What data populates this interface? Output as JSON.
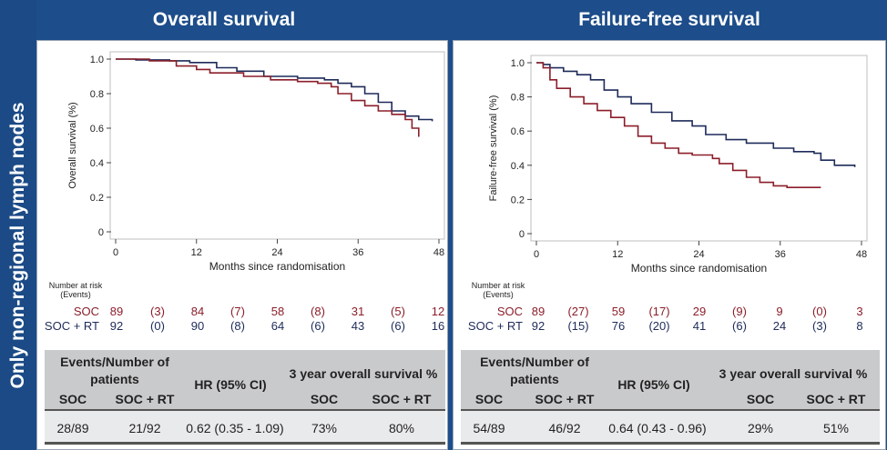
{
  "sidebar": {
    "text": "Only non-regional lymph nodes"
  },
  "panels": [
    {
      "title": "Overall survival",
      "risk_header": [
        "Number at risk",
        "(Events)"
      ],
      "risk": {
        "soc_label": "SOC",
        "rt_label": "SOC + RT",
        "soc": [
          "89",
          "(3)",
          "84",
          "(7)",
          "58",
          "(8)",
          "31",
          "(5)",
          "12"
        ],
        "rt": [
          "92",
          "(0)",
          "90",
          "(8)",
          "64",
          "(6)",
          "43",
          "(6)",
          "16"
        ]
      },
      "table": {
        "events_header": "Events/Number of patients",
        "hr_header": "HR (95% CI)",
        "surv_header": "3 year overall survival %",
        "col_soc": "SOC",
        "col_rt": "SOC + RT",
        "values": [
          "28/89",
          "21/92",
          "0.62 (0.35 - 1.09)",
          "73%",
          "80%"
        ]
      }
    },
    {
      "title": "Failure-free survival",
      "risk_header": [
        "Number at risk",
        "(Events)"
      ],
      "risk": {
        "soc_label": "SOC",
        "rt_label": "SOC + RT",
        "soc": [
          "89",
          "(27)",
          "59",
          "(17)",
          "29",
          "(9)",
          "9",
          "(0)",
          "3"
        ],
        "rt": [
          "92",
          "(15)",
          "76",
          "(20)",
          "41",
          "(6)",
          "24",
          "(3)",
          "8"
        ]
      },
      "table": {
        "events_header": "Events/Number of patients",
        "hr_header": "HR (95% CI)",
        "surv_header": "3 year overall survival %",
        "col_soc": "SOC",
        "col_rt": "SOC + RT",
        "values": [
          "54/89",
          "46/92",
          "0.64 (0.43 - 0.96)",
          "29%",
          "51%"
        ]
      }
    }
  ],
  "chart_data": [
    {
      "type": "line",
      "title": "Overall survival",
      "xlabel": "Months since randomisation",
      "ylabel": "Overall survival (%)",
      "xlim": [
        0,
        48
      ],
      "ylim": [
        0,
        1.0
      ],
      "xticks": [
        0,
        12,
        24,
        36,
        48
      ],
      "yticks": [
        0,
        0.2,
        0.4,
        0.6,
        0.8,
        1.0
      ],
      "grid": false,
      "legend": "none",
      "series": [
        {
          "name": "SOC + RT",
          "color": "#1e2b5a",
          "points": [
            [
              0,
              1.0
            ],
            [
              3,
              0.995
            ],
            [
              8,
              0.99
            ],
            [
              11,
              0.98
            ],
            [
              15,
              0.95
            ],
            [
              18,
              0.93
            ],
            [
              22,
              0.9
            ],
            [
              27,
              0.89
            ],
            [
              31,
              0.88
            ],
            [
              33,
              0.86
            ],
            [
              35,
              0.84
            ],
            [
              37,
              0.8
            ],
            [
              39,
              0.75
            ],
            [
              41,
              0.7
            ],
            [
              43,
              0.67
            ],
            [
              45,
              0.65
            ],
            [
              47,
              0.64
            ]
          ]
        },
        {
          "name": "SOC",
          "color": "#8b1e2a",
          "points": [
            [
              0,
              1.0
            ],
            [
              5,
              0.99
            ],
            [
              9,
              0.96
            ],
            [
              12,
              0.94
            ],
            [
              14,
              0.92
            ],
            [
              19,
              0.9
            ],
            [
              23,
              0.88
            ],
            [
              27,
              0.87
            ],
            [
              30,
              0.86
            ],
            [
              32,
              0.84
            ],
            [
              33,
              0.8
            ],
            [
              35,
              0.76
            ],
            [
              37,
              0.73
            ],
            [
              39,
              0.7
            ],
            [
              41,
              0.68
            ],
            [
              43,
              0.65
            ],
            [
              44,
              0.6
            ],
            [
              45,
              0.55
            ]
          ]
        }
      ]
    },
    {
      "type": "line",
      "title": "Failure-free survival",
      "xlabel": "Months since randomisation",
      "ylabel": "Failure-free survival (%)",
      "xlim": [
        0,
        48
      ],
      "ylim": [
        0,
        1.0
      ],
      "xticks": [
        0,
        12,
        24,
        36,
        48
      ],
      "yticks": [
        0,
        0.2,
        0.4,
        0.6,
        0.8,
        1.0
      ],
      "grid": false,
      "legend": "none",
      "series": [
        {
          "name": "SOC + RT",
          "color": "#1e2b5a",
          "points": [
            [
              0,
              1.0
            ],
            [
              1,
              0.99
            ],
            [
              2,
              0.97
            ],
            [
              4,
              0.95
            ],
            [
              6,
              0.93
            ],
            [
              8,
              0.9
            ],
            [
              10,
              0.84
            ],
            [
              12,
              0.8
            ],
            [
              14,
              0.76
            ],
            [
              17,
              0.71
            ],
            [
              20,
              0.66
            ],
            [
              23,
              0.63
            ],
            [
              25,
              0.58
            ],
            [
              28,
              0.55
            ],
            [
              31,
              0.53
            ],
            [
              35,
              0.5
            ],
            [
              38,
              0.48
            ],
            [
              41,
              0.47
            ],
            [
              42,
              0.43
            ],
            [
              44,
              0.4
            ],
            [
              47,
              0.39
            ]
          ]
        },
        {
          "name": "SOC",
          "color": "#8b1e2a",
          "points": [
            [
              0,
              1.0
            ],
            [
              1,
              0.97
            ],
            [
              2,
              0.9
            ],
            [
              3,
              0.85
            ],
            [
              5,
              0.8
            ],
            [
              7,
              0.76
            ],
            [
              9,
              0.72
            ],
            [
              11,
              0.68
            ],
            [
              13,
              0.63
            ],
            [
              15,
              0.57
            ],
            [
              17,
              0.53
            ],
            [
              19,
              0.5
            ],
            [
              21,
              0.47
            ],
            [
              23,
              0.46
            ],
            [
              26,
              0.44
            ],
            [
              27,
              0.41
            ],
            [
              29,
              0.37
            ],
            [
              31,
              0.33
            ],
            [
              33,
              0.3
            ],
            [
              35,
              0.28
            ],
            [
              37,
              0.27
            ],
            [
              42,
              0.27
            ]
          ]
        }
      ]
    }
  ]
}
